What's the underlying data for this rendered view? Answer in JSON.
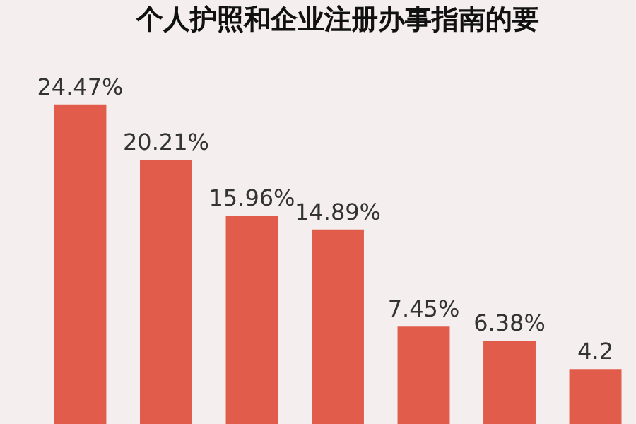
{
  "chart_data": {
    "type": "bar",
    "title": "个人护照和企业注册办事指南的要",
    "categories": [
      null,
      null,
      null,
      null,
      null,
      null,
      null
    ],
    "values": [
      24.47,
      20.21,
      15.96,
      14.89,
      7.45,
      6.38,
      4.2
    ],
    "value_labels": [
      "24.47%",
      "20.21%",
      "15.96%",
      "14.89%",
      "7.45%",
      "6.38%",
      "4.2"
    ],
    "color": "#e25c4c"
  }
}
